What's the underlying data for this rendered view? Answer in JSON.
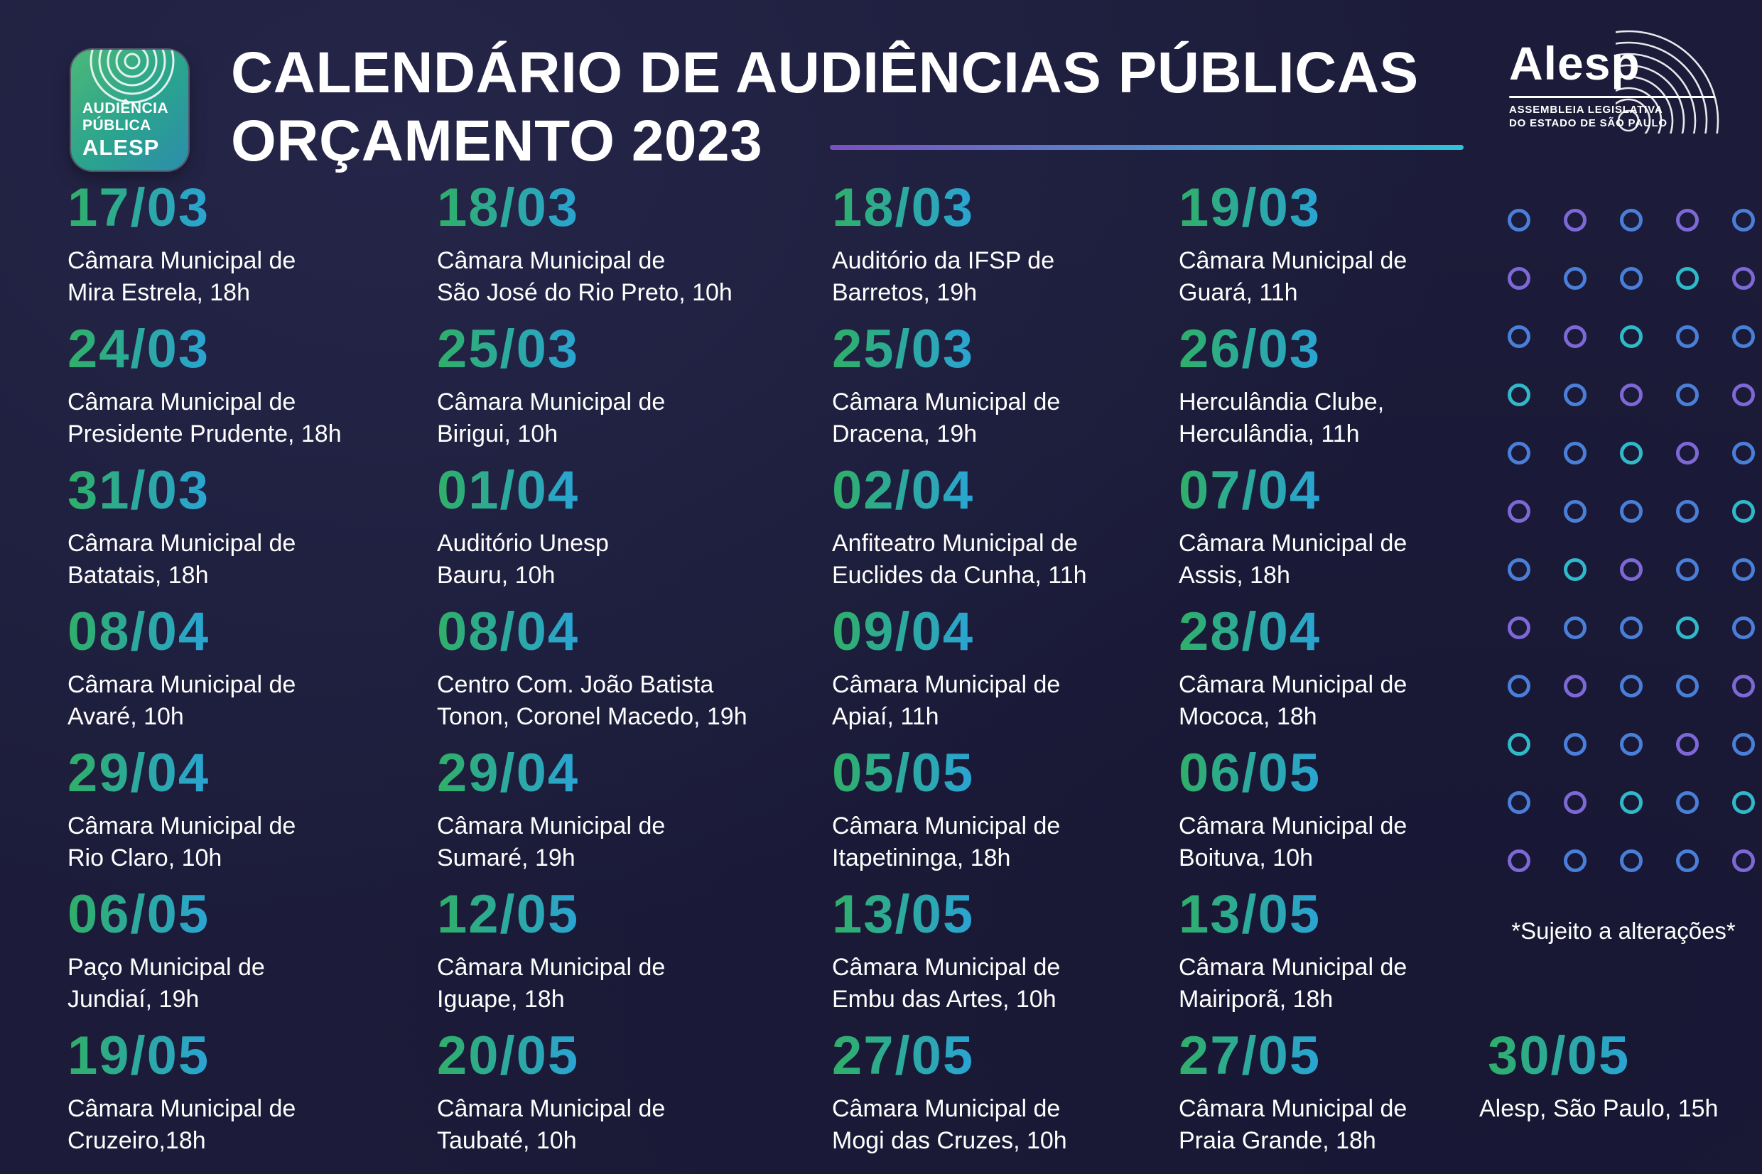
{
  "header": {
    "title_line1": "CALENDÁRIO DE AUDIÊNCIAS PÚBLICAS",
    "title_line2": "ORÇAMENTO 2023"
  },
  "badge": {
    "line1": "AUDIÊNCIA",
    "line2": "PÚBLICA",
    "line3": "ALESP"
  },
  "alesp_logo": {
    "wordmark": "Alesp",
    "subtitle_line1": "ASSEMBLEIA LEGISLATIVA",
    "subtitle_line2": "DO ESTADO DE SÃO PAULO"
  },
  "disclaimer": "*Sujeito a alterações*",
  "colors": {
    "background": "#1c1c3a",
    "date_gradient_start": "#2faf68",
    "date_gradient_end": "#2aa4d4",
    "divider_gradient_start": "#7b50c0",
    "divider_gradient_end": "#2fc3da"
  },
  "events": [
    {
      "date": "17/03",
      "venue_line1": "Câmara Municipal de",
      "venue_line2": "Mira Estrela, 18h"
    },
    {
      "date": "18/03",
      "venue_line1": "Câmara Municipal de",
      "venue_line2": "São José do Rio Preto, 10h"
    },
    {
      "date": "18/03",
      "venue_line1": "Auditório da IFSP de",
      "venue_line2": "Barretos, 19h"
    },
    {
      "date": "19/03",
      "venue_line1": "Câmara Municipal de",
      "venue_line2": "Guará, 11h"
    },
    {
      "date": "24/03",
      "venue_line1": "Câmara Municipal de",
      "venue_line2": "Presidente Prudente, 18h"
    },
    {
      "date": "25/03",
      "venue_line1": "Câmara Municipal de",
      "venue_line2": "Birigui, 10h"
    },
    {
      "date": "25/03",
      "venue_line1": "Câmara Municipal de",
      "venue_line2": "Dracena, 19h"
    },
    {
      "date": "26/03",
      "venue_line1": "Herculândia Clube,",
      "venue_line2": "Herculândia, 11h"
    },
    {
      "date": "31/03",
      "venue_line1": "Câmara Municipal de",
      "venue_line2": "Batatais, 18h"
    },
    {
      "date": "01/04",
      "venue_line1": "Auditório Unesp",
      "venue_line2": "Bauru, 10h"
    },
    {
      "date": "02/04",
      "venue_line1": "Anfiteatro Municipal de",
      "venue_line2": "Euclides da Cunha, 11h"
    },
    {
      "date": "07/04",
      "venue_line1": "Câmara Municipal de",
      "venue_line2": "Assis, 18h"
    },
    {
      "date": "08/04",
      "venue_line1": "Câmara Municipal de",
      "venue_line2": "Avaré, 10h"
    },
    {
      "date": "08/04",
      "venue_line1": "Centro Com. João Batista",
      "venue_line2": "Tonon, Coronel Macedo, 19h"
    },
    {
      "date": "09/04",
      "venue_line1": "Câmara Municipal de",
      "venue_line2": "Apiaí, 11h"
    },
    {
      "date": "28/04",
      "venue_line1": "Câmara Municipal de",
      "venue_line2": "Mococa, 18h"
    },
    {
      "date": "29/04",
      "venue_line1": "Câmara Municipal de",
      "venue_line2": "Rio Claro, 10h"
    },
    {
      "date": "29/04",
      "venue_line1": "Câmara Municipal de",
      "venue_line2": "Sumaré, 19h"
    },
    {
      "date": "05/05",
      "venue_line1": "Câmara Municipal de",
      "venue_line2": "Itapetininga, 18h"
    },
    {
      "date": "06/05",
      "venue_line1": "Câmara Municipal de",
      "venue_line2": "Boituva, 10h"
    },
    {
      "date": "06/05",
      "venue_line1": "Paço Municipal de",
      "venue_line2": "Jundiaí, 19h"
    },
    {
      "date": "12/05",
      "venue_line1": "Câmara Municipal de",
      "venue_line2": "Iguape, 18h"
    },
    {
      "date": "13/05",
      "venue_line1": "Câmara Municipal de",
      "venue_line2": "Embu das Artes, 10h"
    },
    {
      "date": "13/05",
      "venue_line1": "Câmara Municipal de",
      "venue_line2": "Mairiporã, 18h"
    },
    {
      "date": "19/05",
      "venue_line1": "Câmara Municipal de",
      "venue_line2": "Cruzeiro,18h"
    },
    {
      "date": "20/05",
      "venue_line1": "Câmara Municipal de",
      "venue_line2": "Taubaté, 10h"
    },
    {
      "date": "27/05",
      "venue_line1": "Câmara Municipal de",
      "venue_line2": "Mogi das Cruzes, 10h"
    },
    {
      "date": "27/05",
      "venue_line1": "Câmara Municipal de",
      "venue_line2": "Praia Grande, 18h"
    }
  ],
  "closing_event": {
    "date": "30/05",
    "venue_line1": "Alesp, São Paulo, 15h"
  },
  "circles": {
    "palette": {
      "blue": "#4a7fd9",
      "purple": "#7e68d6",
      "teal": "#2fb9c9"
    },
    "pattern": [
      "bpbpb",
      "pbbtp",
      "bptbb",
      "tbpbp",
      "bbtpb",
      "pbbbt",
      "btpbb",
      "pbbtb",
      "bpbbp",
      "tbbpb",
      "bptbt",
      "pbbbp"
    ]
  }
}
